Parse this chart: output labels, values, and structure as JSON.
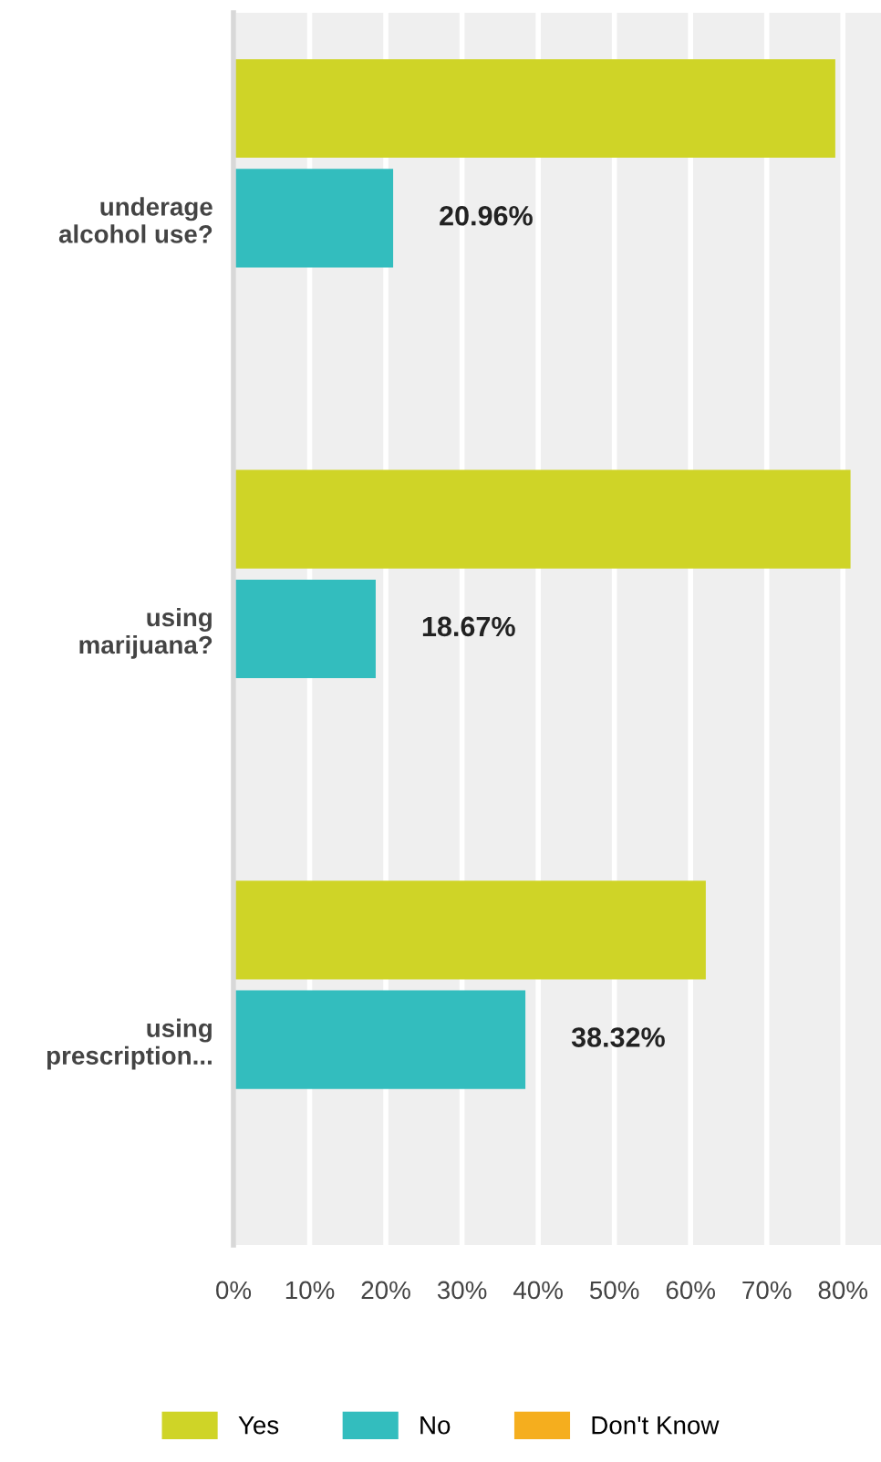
{
  "chart_data": {
    "type": "bar",
    "orientation": "horizontal",
    "categories": [
      "underage\nalcohol use?",
      "using\nmarijuana?",
      "using\nprescription..."
    ],
    "series": [
      {
        "name": "Yes",
        "color": "#cfd427",
        "values": [
          79,
          81,
          62
        ]
      },
      {
        "name": "No",
        "color": "#33bdbe",
        "values": [
          20.96,
          18.67,
          38.32
        ],
        "value_labels": [
          "20.96%",
          "18.67%",
          "38.32%"
        ]
      },
      {
        "name": "Don't Know",
        "color": "#f5ae1e",
        "values": [
          null,
          null,
          null
        ]
      }
    ],
    "xlim": [
      0,
      85
    ],
    "xticks": [
      {
        "value": 0,
        "label": "0%"
      },
      {
        "value": 10,
        "label": "10%"
      },
      {
        "value": 20,
        "label": "20%"
      },
      {
        "value": 30,
        "label": "30%"
      },
      {
        "value": 40,
        "label": "40%"
      },
      {
        "value": 50,
        "label": "50%"
      },
      {
        "value": 60,
        "label": "60%"
      },
      {
        "value": 70,
        "label": "70%"
      },
      {
        "value": 80,
        "label": "80%"
      }
    ],
    "grid": "x",
    "legend": "bottom"
  }
}
